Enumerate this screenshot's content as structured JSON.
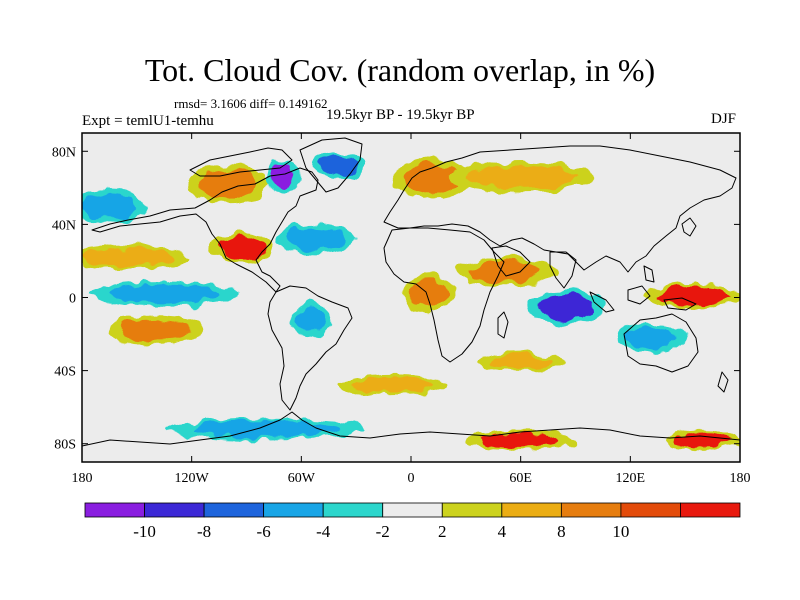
{
  "title": "Tot. Cloud Cov. (random overlap, in %)",
  "stats": "rmsd= 3.1606 diff= 0.149162",
  "experiment": "Expt = temlU1-temhu",
  "period": "19.5kyr BP - 19.5kyr BP",
  "season": "DJF",
  "map_data": {
    "type": "filled-contour-map",
    "projection": "cylindrical-equidistant",
    "lon_range": [
      -180,
      180
    ],
    "lat_range": [
      -90,
      90
    ],
    "x_ticks": [
      {
        "lon": -180,
        "label": "180"
      },
      {
        "lon": -120,
        "label": "120W"
      },
      {
        "lon": -60,
        "label": "60W"
      },
      {
        "lon": 0,
        "label": "0"
      },
      {
        "lon": 60,
        "label": "60E"
      },
      {
        "lon": 120,
        "label": "120E"
      },
      {
        "lon": 180,
        "label": "180"
      }
    ],
    "y_ticks": [
      {
        "lat": 80,
        "label": "80N"
      },
      {
        "lat": 40,
        "label": "40N"
      },
      {
        "lat": 0,
        "label": "0"
      },
      {
        "lat": -40,
        "label": "40S"
      },
      {
        "lat": -80,
        "label": "80S"
      }
    ]
  },
  "colorbar": {
    "colors": [
      "#8a1ee0",
      "#3c28d6",
      "#1e64dc",
      "#19a5e6",
      "#2cd6cc",
      "#ececec",
      "#ccd21e",
      "#ebad14",
      "#e67d0f",
      "#e34b0a",
      "#e8190e"
    ],
    "labels": [
      {
        "index": 1,
        "text": "-10"
      },
      {
        "index": 2,
        "text": "-8"
      },
      {
        "index": 3,
        "text": "-6"
      },
      {
        "index": 4,
        "text": "-4"
      },
      {
        "index": 5,
        "text": "-2"
      },
      {
        "index": 6,
        "text": "2"
      },
      {
        "index": 7,
        "text": "4"
      },
      {
        "index": 8,
        "text": "8"
      },
      {
        "index": 9,
        "text": "10"
      }
    ]
  },
  "anomaly_regions": [
    {
      "name": "north-america-positive",
      "lon": -100,
      "lat": 62,
      "rlon": 16,
      "rlat": 8,
      "value": 8
    },
    {
      "name": "baffin-negative",
      "lon": -70,
      "lat": 66,
      "rlon": 7,
      "rlat": 7,
      "value": -10
    },
    {
      "name": "greenland-negative",
      "lon": -40,
      "lat": 72,
      "rlon": 10,
      "rlat": 5,
      "value": -6
    },
    {
      "name": "scandinavia-positive",
      "lon": 12,
      "lat": 65,
      "rlon": 16,
      "rlat": 8,
      "value": 8
    },
    {
      "name": "siberia-mixed",
      "lon": 60,
      "lat": 66,
      "rlon": 30,
      "rlat": 6,
      "value": 4
    },
    {
      "name": "gulf-mexico-positive",
      "lon": -92,
      "lat": 27,
      "rlon": 13,
      "rlat": 6,
      "value": 10
    },
    {
      "name": "north-atlantic-negative",
      "lon": -52,
      "lat": 32,
      "rlon": 16,
      "rlat": 6,
      "value": -4
    },
    {
      "name": "north-pacific-negative",
      "lon": -165,
      "lat": 50,
      "rlon": 15,
      "rlat": 7,
      "value": -4
    },
    {
      "name": "east-pacific-positive",
      "lon": -155,
      "lat": 22,
      "rlon": 25,
      "rlat": 5,
      "value": 4
    },
    {
      "name": "equatorial-pacific-negative",
      "lon": -135,
      "lat": 2,
      "rlon": 30,
      "rlat": 5,
      "value": -4
    },
    {
      "name": "south-pacific-positive",
      "lon": -140,
      "lat": -18,
      "rlon": 20,
      "rlat": 6,
      "value": 8
    },
    {
      "name": "south-america-negative",
      "lon": -55,
      "lat": -12,
      "rlon": 8,
      "rlat": 7,
      "value": -4
    },
    {
      "name": "gulf-guinea-positive",
      "lon": 10,
      "lat": 2,
      "rlon": 10,
      "rlat": 8,
      "value": 8
    },
    {
      "name": "indian-ocean-positive",
      "lon": 52,
      "lat": 14,
      "rlon": 20,
      "rlat": 6,
      "value": 8
    },
    {
      "name": "indian-ocean-negative",
      "lon": 85,
      "lat": -5,
      "rlon": 16,
      "rlat": 7,
      "value": -8
    },
    {
      "name": "maritime-positive",
      "lon": 155,
      "lat": 1,
      "rlon": 20,
      "rlat": 5,
      "value": 10
    },
    {
      "name": "australia-negative",
      "lon": 132,
      "lat": -22,
      "rlon": 14,
      "rlat": 6,
      "value": -4
    },
    {
      "name": "south-indian-positive",
      "lon": 60,
      "lat": -35,
      "rlon": 18,
      "rlat": 4,
      "value": 4
    },
    {
      "name": "south-atlantic-positive",
      "lon": -10,
      "lat": -48,
      "rlon": 22,
      "rlat": 4,
      "value": 4
    },
    {
      "name": "southern-ocean-positive",
      "lon": 60,
      "lat": -78,
      "rlon": 22,
      "rlat": 4,
      "value": 10
    },
    {
      "name": "ross-sea-positive",
      "lon": 160,
      "lat": -78,
      "rlon": 15,
      "rlat": 4,
      "value": 10
    },
    {
      "name": "southern-ocean-negative",
      "lon": -80,
      "lat": -72,
      "rlon": 40,
      "rlat": 4,
      "value": -4
    }
  ]
}
